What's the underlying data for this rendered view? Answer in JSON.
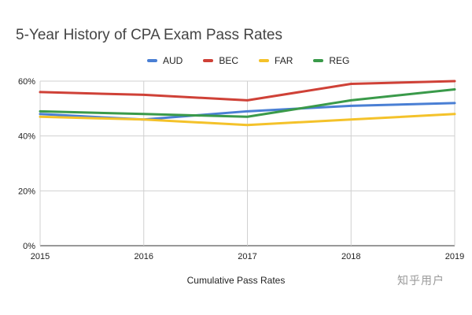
{
  "chart_data": {
    "type": "line",
    "title": "5-Year History of CPA Exam Pass Rates",
    "xlabel": "Cumulative Pass Rates",
    "ylabel": "",
    "categories": [
      "2015",
      "2016",
      "2017",
      "2018",
      "2019"
    ],
    "y_ticks": [
      "0%",
      "20%",
      "40%",
      "60%"
    ],
    "ylim": [
      0,
      60
    ],
    "grid": true,
    "legend_position": "top",
    "series": [
      {
        "name": "AUD",
        "color": "#4a7fd4",
        "values": [
          48,
          46,
          49,
          51,
          52
        ]
      },
      {
        "name": "BEC",
        "color": "#cf4137",
        "values": [
          56,
          55,
          53,
          59,
          60
        ]
      },
      {
        "name": "FAR",
        "color": "#f4c22a",
        "values": [
          47,
          46,
          44,
          46,
          48
        ]
      },
      {
        "name": "REG",
        "color": "#3a9a4a",
        "values": [
          49,
          48,
          47,
          53,
          57
        ]
      }
    ]
  },
  "watermark": "知乎用户"
}
